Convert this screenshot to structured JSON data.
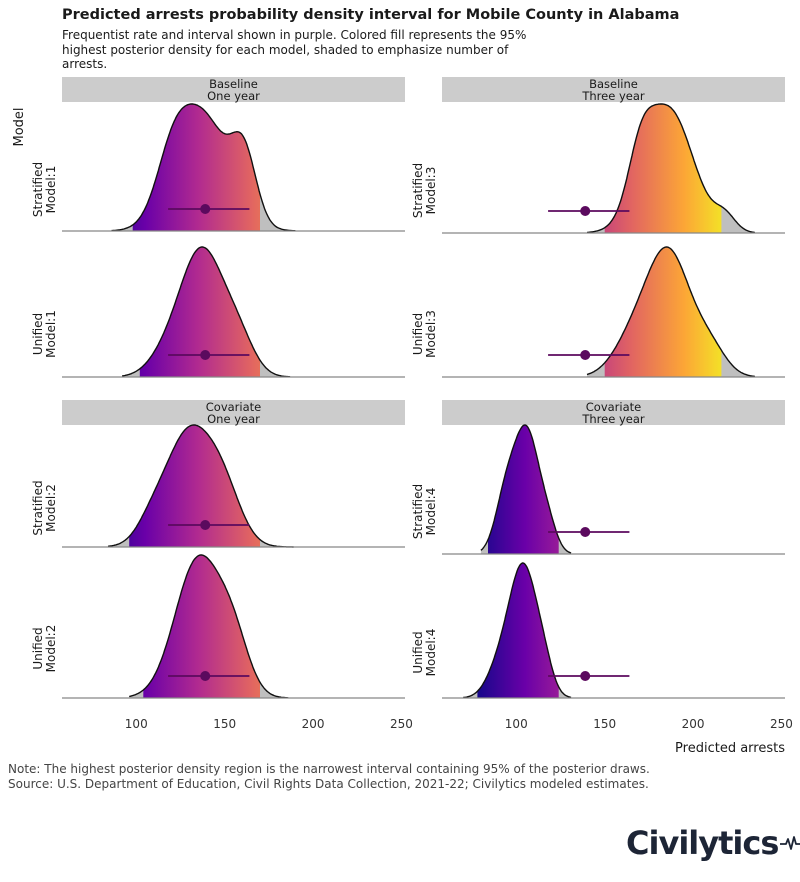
{
  "title": "Predicted arrests probability density interval for Mobile County in Alabama",
  "subtitle": "Frequentist rate and interval shown in purple. Colored fill represents the 95% highest posterior density for each model, shaded to emphasize number of arrests.",
  "notes": [
    "Note: The highest posterior density region is the narrowest interval containing 95% of the posterior draws.",
    "Source: U.S. Department of Education, Civil Rights Data Collection, 2021-22; Civilytics modeled estimates."
  ],
  "logo_text": "Civilytics",
  "colors": {
    "strip_bg": "#cccccc",
    "tail_fill": "#bfbfbf",
    "frequentist": "#5b0a5e",
    "gradient": [
      "#0d0887",
      "#6a00a8",
      "#b12a90",
      "#e16462",
      "#fca636",
      "#f0f921"
    ],
    "gradient_range": [
      75,
      225
    ]
  },
  "chart_data": {
    "type": "area",
    "subtype": "ridgeline density with highest posterior density shading",
    "xlabel": "Predicted arrests",
    "ylabel": "Model",
    "xlim": [
      58,
      252
    ],
    "xticks": [
      100,
      150,
      200,
      250
    ],
    "frequentist": {
      "rate": 139,
      "interval": [
        118,
        164
      ]
    },
    "facets": [
      {
        "strip": [
          "Baseline",
          "One year"
        ],
        "rows": [
          {
            "label": [
              "Stratified",
              "Model:1"
            ],
            "range": [
              86,
              190
            ],
            "hpd": [
              98,
              170
            ],
            "bumps": [
              [
                137,
                15,
                0.95
              ],
              [
                120,
                9,
                0.35
              ],
              [
                161,
                7,
                0.5
              ]
            ]
          },
          {
            "label": [
              "Unified",
              "Model:1"
            ],
            "range": [
              92,
              187
            ],
            "hpd": [
              102,
              170
            ],
            "bumps": [
              [
                137,
                12.5,
                1.0
              ],
              [
                116,
                10,
                0.12
              ],
              [
                158,
                9,
                0.25
              ]
            ]
          }
        ]
      },
      {
        "strip": [
          "Baseline",
          "Three year"
        ],
        "rows": [
          {
            "label": [
              "Stratified",
              "Model:3"
            ],
            "range": [
              140,
              235
            ],
            "hpd": [
              150,
              216
            ],
            "bumps": [
              [
                186,
                14,
                1.0
              ],
              [
                170,
                7,
                0.35
              ],
              [
                218,
                6,
                0.12
              ]
            ]
          },
          {
            "label": [
              "Unified",
              "Model:3"
            ],
            "range": [
              140,
              235
            ],
            "hpd": [
              150,
              216
            ],
            "bumps": [
              [
                186,
                12.5,
                1.0
              ],
              [
                165,
                11,
                0.25
              ],
              [
                210,
                9,
                0.2
              ]
            ]
          }
        ]
      },
      {
        "strip": [
          "Covariate",
          "One year"
        ],
        "rows": [
          {
            "label": [
              "Stratified",
              "Model:2"
            ],
            "range": [
              84,
              189
            ],
            "hpd": [
              96,
              170
            ],
            "bumps": [
              [
                130,
                14,
                1.0
              ],
              [
                150,
                10,
                0.35
              ],
              [
                108,
                8,
                0.12
              ]
            ]
          },
          {
            "label": [
              "Unified",
              "Model:2"
            ],
            "range": [
              96,
              186
            ],
            "hpd": [
              104,
              170
            ],
            "bumps": [
              [
                135,
                13,
                1.0
              ],
              [
                155,
                9,
                0.35
              ]
            ]
          }
        ]
      },
      {
        "strip": [
          "Covariate",
          "Three year"
        ],
        "rows": [
          {
            "label": [
              "Stratified",
              "Model:4"
            ],
            "range": [
              80,
              131
            ],
            "hpd": [
              84,
              124
            ],
            "bumps": [
              [
                106,
                7,
                1.0
              ],
              [
                94,
                6,
                0.45
              ],
              [
                118,
                5,
                0.2
              ]
            ]
          },
          {
            "label": [
              "Unified",
              "Model:4"
            ],
            "range": [
              70,
              131
            ],
            "hpd": [
              78,
              124
            ],
            "bumps": [
              [
                104,
                8,
                1.0
              ],
              [
                90,
                7,
                0.2
              ],
              [
                116,
                5,
                0.15
              ]
            ]
          }
        ]
      }
    ]
  }
}
